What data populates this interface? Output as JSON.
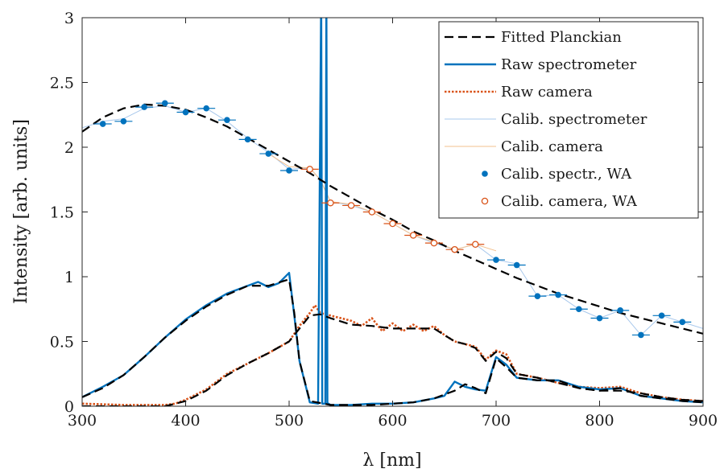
{
  "chart_data": {
    "type": "line",
    "title": "",
    "xlabel": "λ [nm]",
    "ylabel": "Intensity [arb. units]",
    "xlim": [
      300,
      900
    ],
    "ylim": [
      0,
      3
    ],
    "xticks": [
      300,
      400,
      500,
      600,
      700,
      800,
      900
    ],
    "yticks": [
      0,
      0.5,
      1,
      1.5,
      2,
      2.5,
      3
    ],
    "ytick_labels": [
      "0",
      "0.5",
      "1",
      "1.5",
      "2",
      "2.5",
      "3"
    ],
    "grid": false,
    "legend_position": "top-right",
    "series": [
      {
        "name": "Fitted Planckian",
        "style": "dashed",
        "color": "#000000",
        "x": [
          300,
          320,
          340,
          360,
          380,
          400,
          420,
          440,
          460,
          480,
          500,
          520,
          540,
          560,
          580,
          600,
          620,
          640,
          660,
          680,
          700,
          720,
          740,
          760,
          780,
          800,
          820,
          840,
          860,
          880,
          900
        ],
        "y": [
          2.12,
          2.23,
          2.3,
          2.33,
          2.32,
          2.29,
          2.23,
          2.16,
          2.07,
          1.98,
          1.89,
          1.8,
          1.7,
          1.61,
          1.52,
          1.44,
          1.35,
          1.28,
          1.2,
          1.13,
          1.06,
          0.99,
          0.93,
          0.87,
          0.82,
          0.77,
          0.72,
          0.68,
          0.64,
          0.6,
          0.56
        ]
      },
      {
        "name": "Fitted Planckian",
        "style": "dashed",
        "color": "#000000",
        "x": [
          300,
          320,
          340,
          360,
          380,
          400,
          420,
          440,
          460,
          480,
          500,
          505,
          510,
          520,
          540,
          560,
          580,
          600,
          620,
          640,
          660,
          670,
          680,
          690,
          700,
          710,
          720,
          740,
          760,
          780,
          800,
          820,
          840,
          860,
          880,
          900
        ],
        "y": [
          0.07,
          0.14,
          0.24,
          0.38,
          0.53,
          0.66,
          0.77,
          0.86,
          0.93,
          0.93,
          0.98,
          0.72,
          0.35,
          0.04,
          0.01,
          0.01,
          0.01,
          0.02,
          0.03,
          0.06,
          0.12,
          0.17,
          0.14,
          0.1,
          0.37,
          0.3,
          0.22,
          0.2,
          0.2,
          0.14,
          0.12,
          0.14,
          0.08,
          0.06,
          0.04,
          0.03
        ]
      },
      {
        "name": "Fitted Planckian",
        "style": "dashed",
        "color": "#000000",
        "x": [
          300,
          340,
          380,
          400,
          420,
          440,
          460,
          480,
          500,
          520,
          530,
          540,
          560,
          580,
          600,
          620,
          640,
          660,
          670,
          680,
          690,
          700,
          710,
          720,
          740,
          760,
          780,
          800,
          820,
          840,
          860,
          880,
          900
        ],
        "y": [
          0,
          0,
          0,
          0.04,
          0.12,
          0.24,
          0.33,
          0.41,
          0.5,
          0.7,
          0.71,
          0.68,
          0.63,
          0.62,
          0.6,
          0.6,
          0.6,
          0.5,
          0.48,
          0.45,
          0.35,
          0.42,
          0.37,
          0.25,
          0.22,
          0.18,
          0.14,
          0.12,
          0.12,
          0.1,
          0.07,
          0.05,
          0.04
        ]
      },
      {
        "name": "Raw spectrometer",
        "style": "solid",
        "color": "#0072BD",
        "x": [
          300,
          320,
          340,
          360,
          380,
          400,
          420,
          440,
          460,
          470,
          480,
          490,
          500,
          505,
          510,
          520,
          528,
          531,
          532,
          533,
          535,
          536,
          537,
          538,
          540,
          560,
          580,
          600,
          620,
          640,
          650,
          660,
          670,
          680,
          690,
          700,
          710,
          720,
          740,
          760,
          780,
          800,
          820,
          840,
          860,
          880,
          900
        ],
        "y": [
          0.07,
          0.15,
          0.24,
          0.38,
          0.53,
          0.67,
          0.78,
          0.87,
          0.93,
          0.96,
          0.92,
          0.95,
          1.03,
          0.7,
          0.35,
          0.03,
          0.02,
          3.2,
          0.02,
          0.02,
          0.02,
          3.2,
          0.02,
          0.02,
          0.01,
          0.01,
          0.02,
          0.02,
          0.03,
          0.06,
          0.08,
          0.19,
          0.15,
          0.13,
          0.12,
          0.38,
          0.32,
          0.22,
          0.2,
          0.2,
          0.15,
          0.13,
          0.14,
          0.08,
          0.06,
          0.04,
          0.03
        ]
      },
      {
        "name": "Raw camera",
        "style": "dotted",
        "color": "#D95319",
        "x": [
          300,
          340,
          380,
          390,
          400,
          420,
          440,
          460,
          480,
          500,
          510,
          520,
          525,
          530,
          540,
          560,
          570,
          580,
          590,
          600,
          610,
          620,
          630,
          640,
          650,
          660,
          670,
          680,
          690,
          700,
          710,
          720,
          740,
          760,
          780,
          800,
          820,
          840,
          860,
          880,
          900
        ],
        "y": [
          0.02,
          0.01,
          0.01,
          0.02,
          0.05,
          0.13,
          0.25,
          0.33,
          0.41,
          0.5,
          0.62,
          0.72,
          0.78,
          0.72,
          0.7,
          0.66,
          0.62,
          0.68,
          0.58,
          0.64,
          0.58,
          0.63,
          0.58,
          0.62,
          0.55,
          0.5,
          0.48,
          0.46,
          0.36,
          0.43,
          0.4,
          0.25,
          0.22,
          0.18,
          0.15,
          0.14,
          0.15,
          0.1,
          0.07,
          0.05,
          0.04
        ]
      },
      {
        "name": "Calib. spectrometer",
        "style": "thin",
        "color": "#A8C8EC",
        "x": [
          300,
          320,
          340,
          360,
          380,
          400,
          420,
          440,
          460,
          480,
          500,
          520,
          530,
          540,
          560,
          580,
          600,
          620,
          640,
          660,
          680,
          700,
          720,
          740,
          760,
          780,
          800,
          820,
          840,
          860,
          880,
          900
        ],
        "y": [
          2.15,
          2.2,
          2.22,
          2.3,
          2.32,
          2.27,
          2.3,
          2.2,
          2.07,
          1.96,
          1.83,
          1.84,
          1.75,
          1.58,
          1.55,
          1.5,
          1.41,
          1.32,
          1.26,
          1.21,
          1.25,
          1.13,
          1.1,
          0.85,
          0.86,
          0.75,
          0.68,
          0.74,
          0.55,
          0.7,
          0.65,
          0.6
        ]
      },
      {
        "name": "Calib. camera",
        "style": "thin",
        "color": "#F3C08E",
        "x": [
          480,
          500,
          520,
          530,
          540,
          560,
          580,
          600,
          620,
          640,
          660,
          680,
          700
        ],
        "y": [
          1.95,
          1.85,
          1.84,
          1.75,
          1.58,
          1.56,
          1.5,
          1.41,
          1.32,
          1.27,
          1.21,
          1.25,
          1.2
        ]
      },
      {
        "name": "Calib. spectr., WA",
        "style": "markers-filled",
        "color": "#0072BD",
        "x": [
          320,
          340,
          360,
          380,
          400,
          420,
          440,
          460,
          480,
          500,
          700,
          720,
          740,
          760,
          780,
          800,
          820,
          840,
          860,
          880
        ],
        "y": [
          2.18,
          2.2,
          2.31,
          2.34,
          2.27,
          2.3,
          2.21,
          2.06,
          1.95,
          1.82,
          1.13,
          1.09,
          0.85,
          0.86,
          0.75,
          0.68,
          0.74,
          0.55,
          0.7,
          0.65
        ]
      },
      {
        "name": "Calib. camera, WA",
        "style": "markers-open",
        "color": "#D95319",
        "x": [
          520,
          540,
          560,
          580,
          600,
          620,
          640,
          660,
          680
        ],
        "y": [
          1.83,
          1.57,
          1.55,
          1.5,
          1.41,
          1.32,
          1.26,
          1.21,
          1.25
        ]
      }
    ],
    "legend": [
      "Fitted Planckian",
      "Raw spectrometer",
      "Raw camera",
      "Calib. spectrometer",
      "Calib. camera",
      "Calib. spectr., WA",
      "Calib. camera, WA"
    ]
  }
}
